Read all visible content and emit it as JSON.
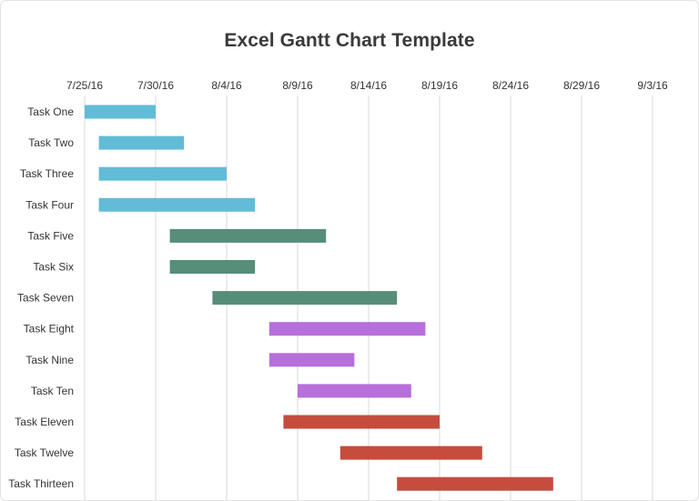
{
  "chart_data": {
    "type": "gantt",
    "title": "Excel Gantt Chart Template",
    "x_ticks": [
      "7/25/16",
      "7/30/16",
      "8/4/16",
      "8/9/16",
      "8/14/16",
      "8/19/16",
      "8/24/16",
      "8/29/16",
      "9/3/16"
    ],
    "xlim": [
      "2016-07-25",
      "2016-09-03"
    ],
    "grid": true,
    "colors": {
      "blue": "#62bcd7",
      "green": "#568e79",
      "purple": "#b76fdb",
      "red": "#c64c3d",
      "gridline": "#d9d9d9"
    },
    "tasks": [
      {
        "name": "Task One",
        "start": "2016-07-25",
        "end": "2016-07-30",
        "color": "blue"
      },
      {
        "name": "Task Two",
        "start": "2016-07-26",
        "end": "2016-08-01",
        "color": "blue"
      },
      {
        "name": "Task Three",
        "start": "2016-07-26",
        "end": "2016-08-04",
        "color": "blue"
      },
      {
        "name": "Task Four",
        "start": "2016-07-26",
        "end": "2016-08-06",
        "color": "blue"
      },
      {
        "name": "Task Five",
        "start": "2016-07-31",
        "end": "2016-08-11",
        "color": "green"
      },
      {
        "name": "Task Six",
        "start": "2016-07-31",
        "end": "2016-08-06",
        "color": "green"
      },
      {
        "name": "Task Seven",
        "start": "2016-08-03",
        "end": "2016-08-16",
        "color": "green"
      },
      {
        "name": "Task Eight",
        "start": "2016-08-07",
        "end": "2016-08-18",
        "color": "purple"
      },
      {
        "name": "Task Nine",
        "start": "2016-08-07",
        "end": "2016-08-13",
        "color": "purple"
      },
      {
        "name": "Task Ten",
        "start": "2016-08-09",
        "end": "2016-08-17",
        "color": "purple"
      },
      {
        "name": "Task Eleven",
        "start": "2016-08-08",
        "end": "2016-08-19",
        "color": "red"
      },
      {
        "name": "Task Twelve",
        "start": "2016-08-12",
        "end": "2016-08-22",
        "color": "red"
      },
      {
        "name": "Task Thirteen",
        "start": "2016-08-16",
        "end": "2016-08-27",
        "color": "red"
      }
    ]
  }
}
